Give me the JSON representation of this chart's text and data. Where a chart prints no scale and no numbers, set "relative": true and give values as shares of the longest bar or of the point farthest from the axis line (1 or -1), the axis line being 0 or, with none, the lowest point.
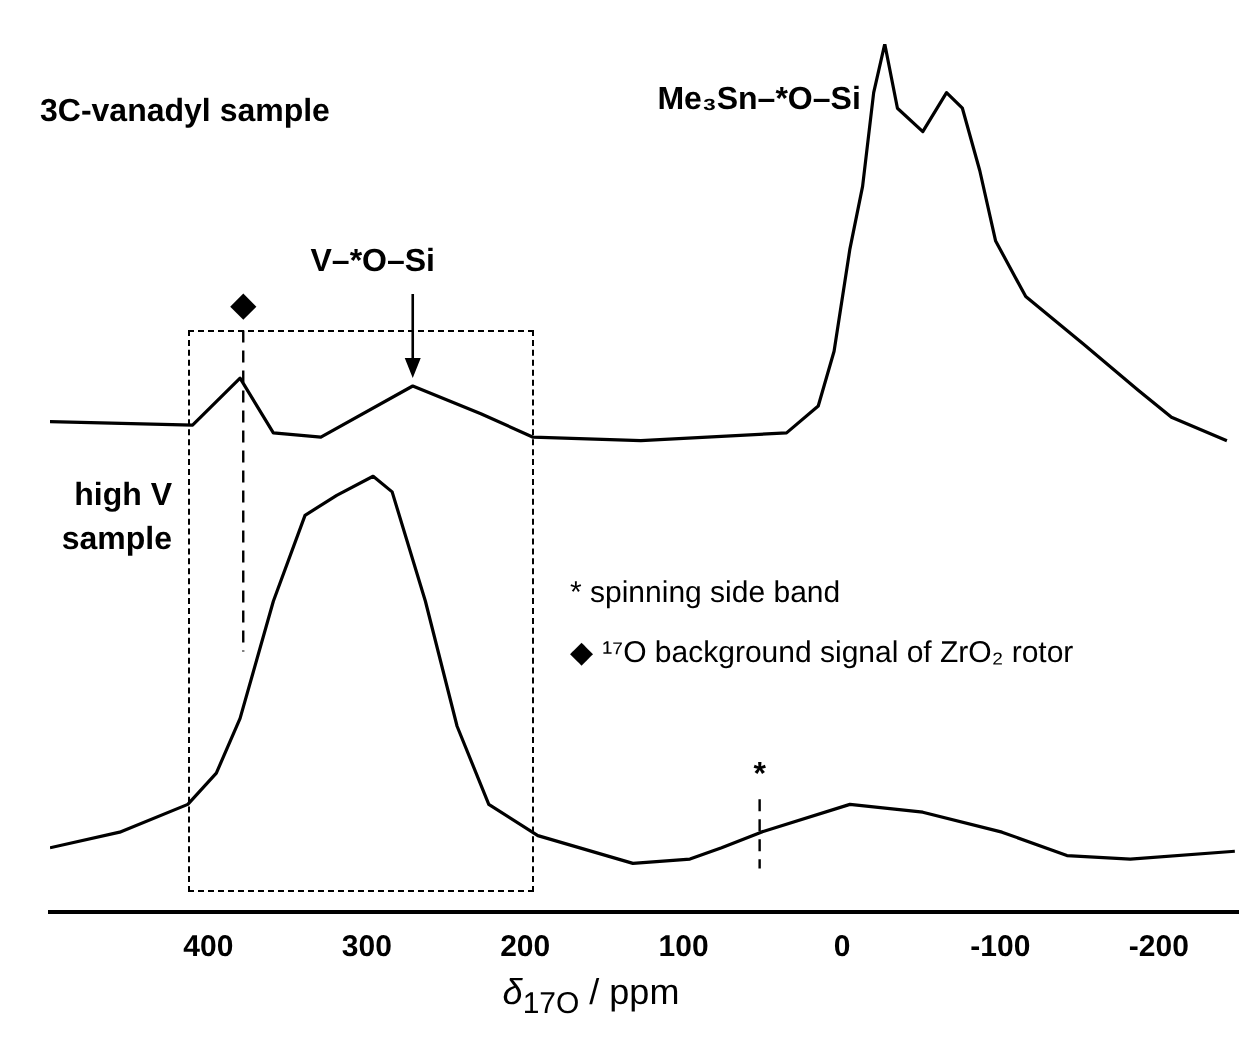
{
  "chart_data": {
    "type": "line",
    "relative": true,
    "xlabel": "δ$_{17O}$ / ppm",
    "xlim": [
      500,
      -250
    ],
    "xticks": [
      400,
      300,
      200,
      100,
      0,
      -100,
      -200
    ],
    "grid": false,
    "legend": false,
    "marker": "none",
    "line_style": "solid",
    "series": [
      {
        "color": "#000000",
        "x": [
          500,
          410,
          380,
          359,
          329,
          271,
          228,
          195,
          127,
          35,
          15,
          5,
          -5,
          -13,
          -20,
          -27,
          -35,
          -51,
          -66,
          -76,
          -87,
          -97,
          -116,
          -152,
          -187,
          -208,
          -243
        ],
        "values": [
          0.565,
          0.561,
          0.615,
          0.552,
          0.547,
          0.606,
          0.574,
          0.547,
          0.543,
          0.552,
          0.583,
          0.646,
          0.764,
          0.836,
          0.944,
          1.0,
          0.926,
          0.899,
          0.944,
          0.926,
          0.854,
          0.773,
          0.709,
          0.655,
          0.601,
          0.57,
          0.543
        ]
      },
      {
        "color": "#000000",
        "x": [
          500,
          456,
          413,
          395,
          380,
          359,
          339,
          319,
          296,
          284,
          263,
          243,
          223,
          192,
          132,
          96,
          76,
          51,
          -5,
          -51,
          -101,
          -142,
          -182,
          -248
        ],
        "values": [
          0.074,
          0.092,
          0.124,
          0.16,
          0.223,
          0.358,
          0.457,
          0.48,
          0.502,
          0.484,
          0.358,
          0.214,
          0.124,
          0.088,
          0.056,
          0.061,
          0.074,
          0.092,
          0.124,
          0.115,
          0.092,
          0.065,
          0.061,
          0.07
        ]
      }
    ],
    "ref_lines": [
      {
        "axis": "x",
        "value": 378,
        "label": "◆",
        "line_style": "dashed",
        "color": "#000000"
      },
      {
        "axis": "x",
        "value": 52,
        "label": "*",
        "line_style": "dashed",
        "color": "#000000"
      }
    ],
    "annotations": [
      "3C-vanadyl sample",
      "high V sample",
      {
        "text": "V–*O–Si",
        "x": 271,
        "y": 0.606
      },
      {
        "text": "Me₃Sn–*O–Si",
        "x": -27,
        "y": 1.0
      },
      "* spinning side band",
      "◆ ¹⁷O background signal of ZrO₂ rotor"
    ]
  }
}
